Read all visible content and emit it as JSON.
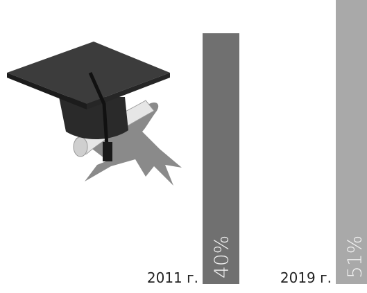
{
  "chart_data": {
    "type": "bar",
    "categories": [
      "2011 г.",
      "2019 г."
    ],
    "values": [
      40,
      51
    ],
    "value_labels": [
      "40%",
      "51%"
    ],
    "colors": [
      "#707070",
      "#a9a9a9"
    ]
  }
}
